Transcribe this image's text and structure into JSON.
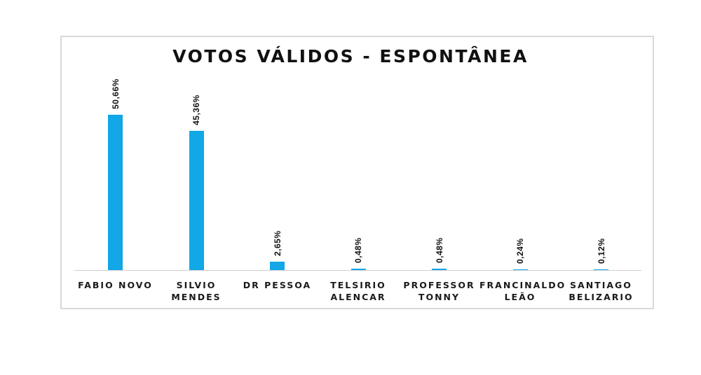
{
  "chart_data": {
    "type": "bar",
    "title": "VOTOS VÁLIDOS - ESPONTÂNEA",
    "xlabel": "",
    "ylabel": "",
    "ylim": [
      0,
      60
    ],
    "grid": false,
    "legend": null,
    "bar_color": "#12a7e6",
    "categories": [
      "FABIO NOVO",
      "SILVIO MENDES",
      "DR PESSOA",
      "TELSIRIO ALENCAR",
      "PROFESSOR TONNY",
      "FRANCINALDO LEÃO",
      "SANTIAGO BELIZARIO"
    ],
    "values": [
      50.66,
      45.36,
      2.65,
      0.48,
      0.48,
      0.24,
      0.12
    ],
    "labels": [
      "50,66%",
      "45,36%",
      "2,65%",
      "0,48%",
      "0,48%",
      "0,24%",
      "0,12%"
    ]
  },
  "display": {
    "title": "VOTOS VÁLIDOS - ESPONTÂNEA",
    "categories": [
      "FABIO NOVO",
      "SILVIO\nMENDES",
      "DR PESSOA",
      "TELSIRIO\nALENCAR",
      "PROFESSOR\nTONNY",
      "FRANCINALDO\nLEÃO",
      "SANTIAGO\nBELIZARIO"
    ]
  }
}
